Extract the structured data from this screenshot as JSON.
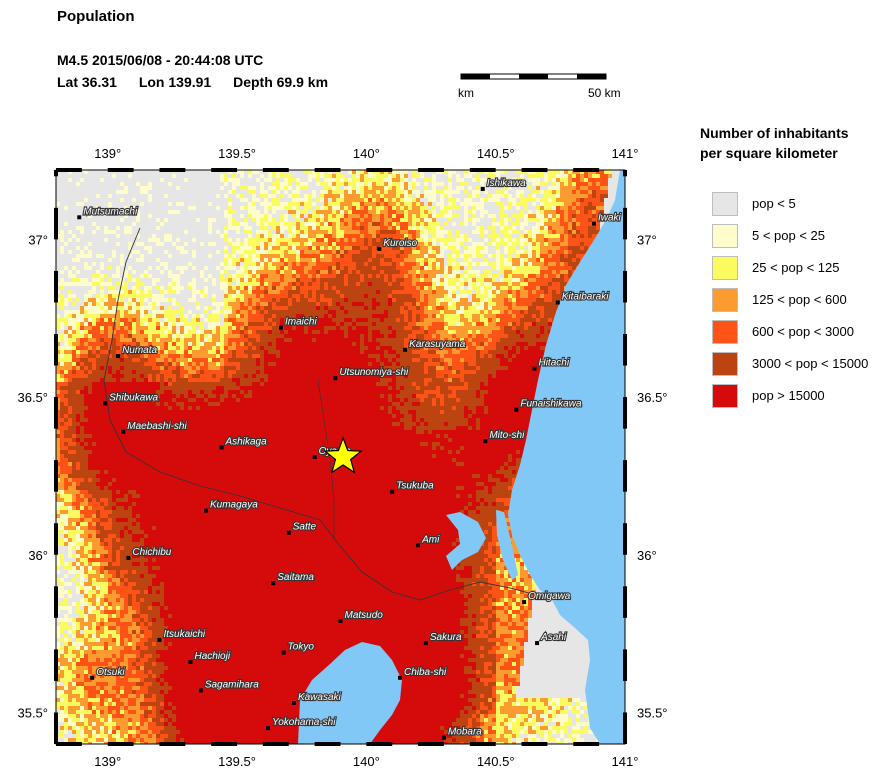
{
  "header": {
    "title": "Population",
    "event": "M4.5  2015/06/08 - 20:44:08 UTC",
    "lat": "Lat 36.31",
    "lon": "Lon 139.91",
    "depth": "Depth  69.9 km"
  },
  "scalebar": {
    "left_label": "0 km",
    "right_label": "50 km"
  },
  "legend": {
    "title_line1": "Number of inhabitants",
    "title_line2": "per square kilometer",
    "items": [
      {
        "label": "pop < 5",
        "color": "#e6e6e6"
      },
      {
        "label": "5 < pop < 25",
        "color": "#fefccb"
      },
      {
        "label": "25 < pop < 125",
        "color": "#fbfa5e"
      },
      {
        "label": "125 < pop < 600",
        "color": "#fb9b30"
      },
      {
        "label": "600 < pop < 3000",
        "color": "#fe5316"
      },
      {
        "label": "3000 < pop < 15000",
        "color": "#bb4410"
      },
      {
        "label": "pop > 15000",
        "color": "#d50b0b"
      }
    ]
  },
  "map": {
    "lon_range": [
      138.8,
      141.0
    ],
    "lat_range": [
      35.4,
      37.22
    ],
    "x_tick_labels": [
      "139°",
      "139.5°",
      "140°",
      "140.5°",
      "141°"
    ],
    "y_tick_labels": [
      "37°",
      "36.5°",
      "36°",
      "35.5°"
    ],
    "epicenter": {
      "lon": 139.91,
      "lat": 36.31
    },
    "cities": [
      {
        "name": "Ishikawa",
        "lon": 140.45,
        "lat": 37.16
      },
      {
        "name": "Iwaki",
        "lon": 140.88,
        "lat": 37.05
      },
      {
        "name": "Mutsumachi",
        "lon": 138.89,
        "lat": 37.07
      },
      {
        "name": "Kuroiso",
        "lon": 140.05,
        "lat": 36.97
      },
      {
        "name": "Kitaibaraki",
        "lon": 140.74,
        "lat": 36.8
      },
      {
        "name": "Imaichi",
        "lon": 139.67,
        "lat": 36.72
      },
      {
        "name": "Numata",
        "lon": 139.04,
        "lat": 36.63
      },
      {
        "name": "Karasuyama",
        "lon": 140.15,
        "lat": 36.65
      },
      {
        "name": "Hitachi",
        "lon": 140.65,
        "lat": 36.59
      },
      {
        "name": "Utsunomiya-shi",
        "lon": 139.88,
        "lat": 36.56
      },
      {
        "name": "Shibukawa",
        "lon": 138.99,
        "lat": 36.48
      },
      {
        "name": "Funaishikawa",
        "lon": 140.58,
        "lat": 36.46
      },
      {
        "name": "Maebashi-shi",
        "lon": 139.06,
        "lat": 36.39
      },
      {
        "name": "Ashikaga",
        "lon": 139.44,
        "lat": 36.34
      },
      {
        "name": "Mito-shi",
        "lon": 140.46,
        "lat": 36.36
      },
      {
        "name": "Oyama",
        "lon": 139.8,
        "lat": 36.31
      },
      {
        "name": "Tsukuba",
        "lon": 140.1,
        "lat": 36.2
      },
      {
        "name": "Kumagaya",
        "lon": 139.38,
        "lat": 36.14
      },
      {
        "name": "Satte",
        "lon": 139.7,
        "lat": 36.07
      },
      {
        "name": "Ami",
        "lon": 140.2,
        "lat": 36.03
      },
      {
        "name": "Chichibu",
        "lon": 139.08,
        "lat": 35.99
      },
      {
        "name": "Saitama",
        "lon": 139.64,
        "lat": 35.91
      },
      {
        "name": "Omigawa",
        "lon": 140.61,
        "lat": 35.85
      },
      {
        "name": "Matsudo",
        "lon": 139.9,
        "lat": 35.79
      },
      {
        "name": "Hachioji",
        "lon": 139.32,
        "lat": 35.66
      },
      {
        "name": "Itsukaichi",
        "lon": 139.2,
        "lat": 35.73
      },
      {
        "name": "Sakura",
        "lon": 140.23,
        "lat": 35.72
      },
      {
        "name": "Asahi",
        "lon": 140.66,
        "lat": 35.72
      },
      {
        "name": "Tokyo",
        "lon": 139.68,
        "lat": 35.69
      },
      {
        "name": "Otsuki",
        "lon": 138.94,
        "lat": 35.61
      },
      {
        "name": "Chiba-shi",
        "lon": 140.13,
        "lat": 35.61
      },
      {
        "name": "Sagamihara",
        "lon": 139.36,
        "lat": 35.57
      },
      {
        "name": "Kawasaki",
        "lon": 139.72,
        "lat": 35.53
      },
      {
        "name": "Yokohama-shi",
        "lon": 139.62,
        "lat": 35.45
      },
      {
        "name": "Mobara",
        "lon": 140.3,
        "lat": 35.42
      }
    ]
  }
}
